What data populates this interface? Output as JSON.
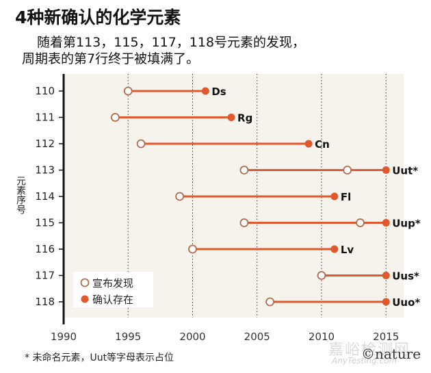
{
  "title": "4种新确认的化学元素",
  "subtitle": [
    "随着第113，115，117，118号元素的发现，",
    "周期表的第7行终于被填满了。"
  ],
  "footnote": "* 未命名元素，Uut等字母表示占位",
  "credit": "©nature",
  "watermark": "嘉峪检测网",
  "watermark_sub": "AnyTesting.com",
  "colors": {
    "accent": "#e0582b",
    "plot_bg": "#f6f2ec",
    "open_stroke": "#b46a4a"
  },
  "chart_data": {
    "type": "dumbbell",
    "ylabel": "元素序号",
    "xlim": [
      1990,
      2017
    ],
    "xticks": [
      "1990",
      "1995",
      "2000",
      "2005",
      "2010",
      "2015"
    ],
    "grid": "vertical dotted",
    "legend": {
      "placement": "bottom-left",
      "entries": [
        "宣布发现",
        "确认存在"
      ]
    },
    "rows": [
      {
        "number": "110",
        "symbol": "Ds",
        "announced": [
          1995
        ],
        "confirmed": 2001
      },
      {
        "number": "111",
        "symbol": "Rg",
        "announced": [
          1994
        ],
        "confirmed": 2003
      },
      {
        "number": "112",
        "symbol": "Cn",
        "announced": [
          1996
        ],
        "confirmed": 2009
      },
      {
        "number": "113",
        "symbol": "Uut*",
        "announced": [
          2004,
          2012
        ],
        "confirmed": 2015
      },
      {
        "number": "114",
        "symbol": "Fl",
        "announced": [
          1999
        ],
        "confirmed": 2011
      },
      {
        "number": "115",
        "symbol": "Uup*",
        "announced": [
          2004,
          2013
        ],
        "confirmed": 2015
      },
      {
        "number": "116",
        "symbol": "Lv",
        "announced": [
          2000
        ],
        "confirmed": 2011
      },
      {
        "number": "117",
        "symbol": "Uus*",
        "announced": [
          2010
        ],
        "confirmed": 2015
      },
      {
        "number": "118",
        "symbol": "Uuo*",
        "announced": [
          2006
        ],
        "confirmed": 2015
      }
    ]
  }
}
